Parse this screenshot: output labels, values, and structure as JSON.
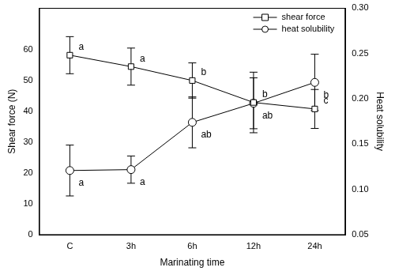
{
  "chart_data": {
    "type": "line",
    "x_label": "Marinating time",
    "y_label": "Shear force (N)",
    "y2_label": "Heat solubility",
    "categories": [
      "C",
      "3h",
      "6h",
      "12h",
      "24h"
    ],
    "ylim": [
      0,
      73.5
    ],
    "yticks": [
      0,
      10,
      20,
      30,
      40,
      50,
      60
    ],
    "y2lim": [
      0.05,
      0.3
    ],
    "y2ticks": [
      0.05,
      {
        "value": 0.1,
        "label": "0.10"
      },
      0.15,
      {
        "value": 0.2,
        "label": "0.20"
      },
      0.25,
      {
        "value": 0.3,
        "label": "0.30"
      }
    ],
    "grid": false,
    "legend": "upper right",
    "series": [
      {
        "name": "shear force",
        "color": "#000000",
        "marker": "square",
        "line_style": "solid",
        "values": [
          58.2,
          54.5,
          50.0,
          42.9,
          40.8
        ],
        "errors": [
          6.0,
          6.0,
          5.7,
          9.8,
          6.3
        ],
        "letters": [
          "a",
          "a",
          "b",
          "b",
          "c"
        ]
      },
      {
        "name": "heat solubility",
        "color": "#000000",
        "marker": "circle",
        "line_style": "solid",
        "axis": "y2",
        "values": [
          0.121,
          0.122,
          0.174,
          0.195,
          0.218
        ],
        "errors": [
          0.028,
          0.015,
          0.028,
          0.028,
          0.031
        ],
        "letters": [
          "a",
          "a",
          "ab",
          "ab",
          "b"
        ]
      }
    ]
  }
}
